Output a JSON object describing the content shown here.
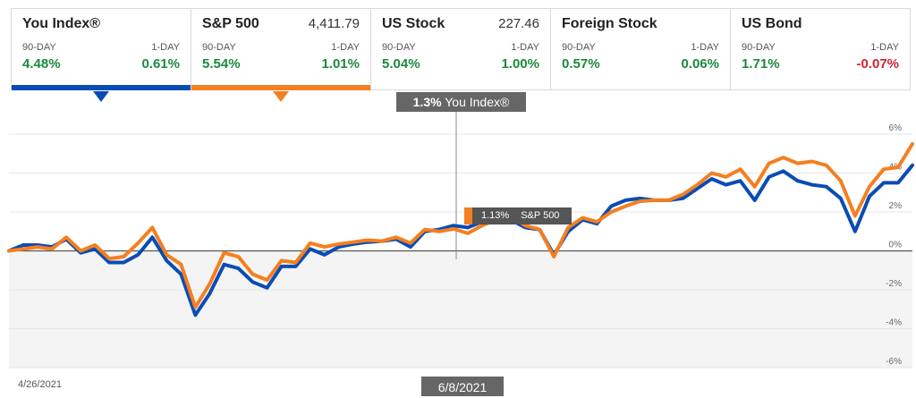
{
  "cards": [
    {
      "name": "You Index®",
      "price": "",
      "label_90": "90-DAY",
      "label_1": "1-DAY",
      "v90": "4.48%",
      "v1": "0.61%",
      "c90": "pos",
      "c1": "pos",
      "color": "#0a4cb5",
      "selected": true
    },
    {
      "name": "S&P 500",
      "price": "4,411.79",
      "label_90": "90-DAY",
      "label_1": "1-DAY",
      "v90": "5.54%",
      "v1": "1.01%",
      "c90": "pos",
      "c1": "pos",
      "color": "#f47f20",
      "selected": true
    },
    {
      "name": "US Stock",
      "price": "227.46",
      "label_90": "90-DAY",
      "label_1": "1-DAY",
      "v90": "5.04%",
      "v1": "1.00%",
      "c90": "pos",
      "c1": "pos",
      "color": "",
      "selected": false
    },
    {
      "name": "Foreign Stock",
      "price": "",
      "label_90": "90-DAY",
      "label_1": "1-DAY",
      "v90": "0.57%",
      "v1": "0.06%",
      "c90": "pos",
      "c1": "pos",
      "color": "",
      "selected": false
    },
    {
      "name": "US Bond",
      "price": "",
      "label_90": "90-DAY",
      "label_1": "1-DAY",
      "v90": "1.71%",
      "v1": "-0.07%",
      "c90": "pos",
      "c1": "neg",
      "color": "",
      "selected": false
    }
  ],
  "tooltip": {
    "value": "1.3%",
    "series": "You Index®",
    "date": "6/8/2021",
    "secondary_value": "1.13%",
    "secondary_series": "S&P 500",
    "secondary_color": "#f47f20"
  },
  "chart_data": {
    "type": "line",
    "x_start_label": "4/26/2021",
    "ylim": [
      -6,
      6
    ],
    "yticks": [
      "6%",
      "4%",
      "2%",
      "0%",
      "-2%",
      "-4%",
      "-6%"
    ],
    "grid": true,
    "series": [
      {
        "name": "You Index®",
        "color": "#0a4cb5",
        "values": [
          0,
          0.3,
          0.3,
          0.2,
          0.6,
          -0.1,
          0.1,
          -0.6,
          -0.6,
          -0.2,
          0.7,
          -0.5,
          -1.2,
          -3.3,
          -2.2,
          -0.7,
          -0.9,
          -1.6,
          -1.9,
          -0.8,
          -0.8,
          0.1,
          -0.2,
          0.2,
          0.35,
          0.45,
          0.5,
          0.6,
          0.2,
          1.0,
          1.1,
          1.3,
          1.2,
          1.5,
          1.5,
          1.6,
          1.2,
          1.1,
          -0.2,
          1.0,
          1.6,
          1.4,
          2.3,
          2.6,
          2.7,
          2.6,
          2.6,
          2.7,
          3.2,
          3.7,
          3.4,
          3.6,
          2.6,
          3.8,
          4.1,
          3.6,
          3.4,
          3.3,
          2.7,
          1.0,
          2.8,
          3.5,
          3.5,
          4.4
        ]
      },
      {
        "name": "S&P 500",
        "color": "#f47f20",
        "values": [
          0,
          0.1,
          0.2,
          0.1,
          0.7,
          0,
          0.3,
          -0.4,
          -0.3,
          0.4,
          1.2,
          -0.2,
          -0.7,
          -2.9,
          -1.7,
          -0.1,
          -0.3,
          -1.2,
          -1.5,
          -0.5,
          -0.6,
          0.4,
          0.2,
          0.35,
          0.45,
          0.55,
          0.5,
          0.7,
          0.4,
          1.1,
          1.0,
          1.13,
          0.9,
          1.3,
          1.6,
          1.8,
          1.3,
          1.1,
          -0.3,
          1.2,
          1.7,
          1.5,
          2.0,
          2.3,
          2.55,
          2.6,
          2.6,
          2.9,
          3.4,
          4.0,
          3.8,
          4.2,
          3.3,
          4.5,
          4.8,
          4.5,
          4.6,
          4.4,
          3.6,
          1.8,
          3.3,
          4.2,
          4.3,
          5.5
        ]
      }
    ]
  }
}
